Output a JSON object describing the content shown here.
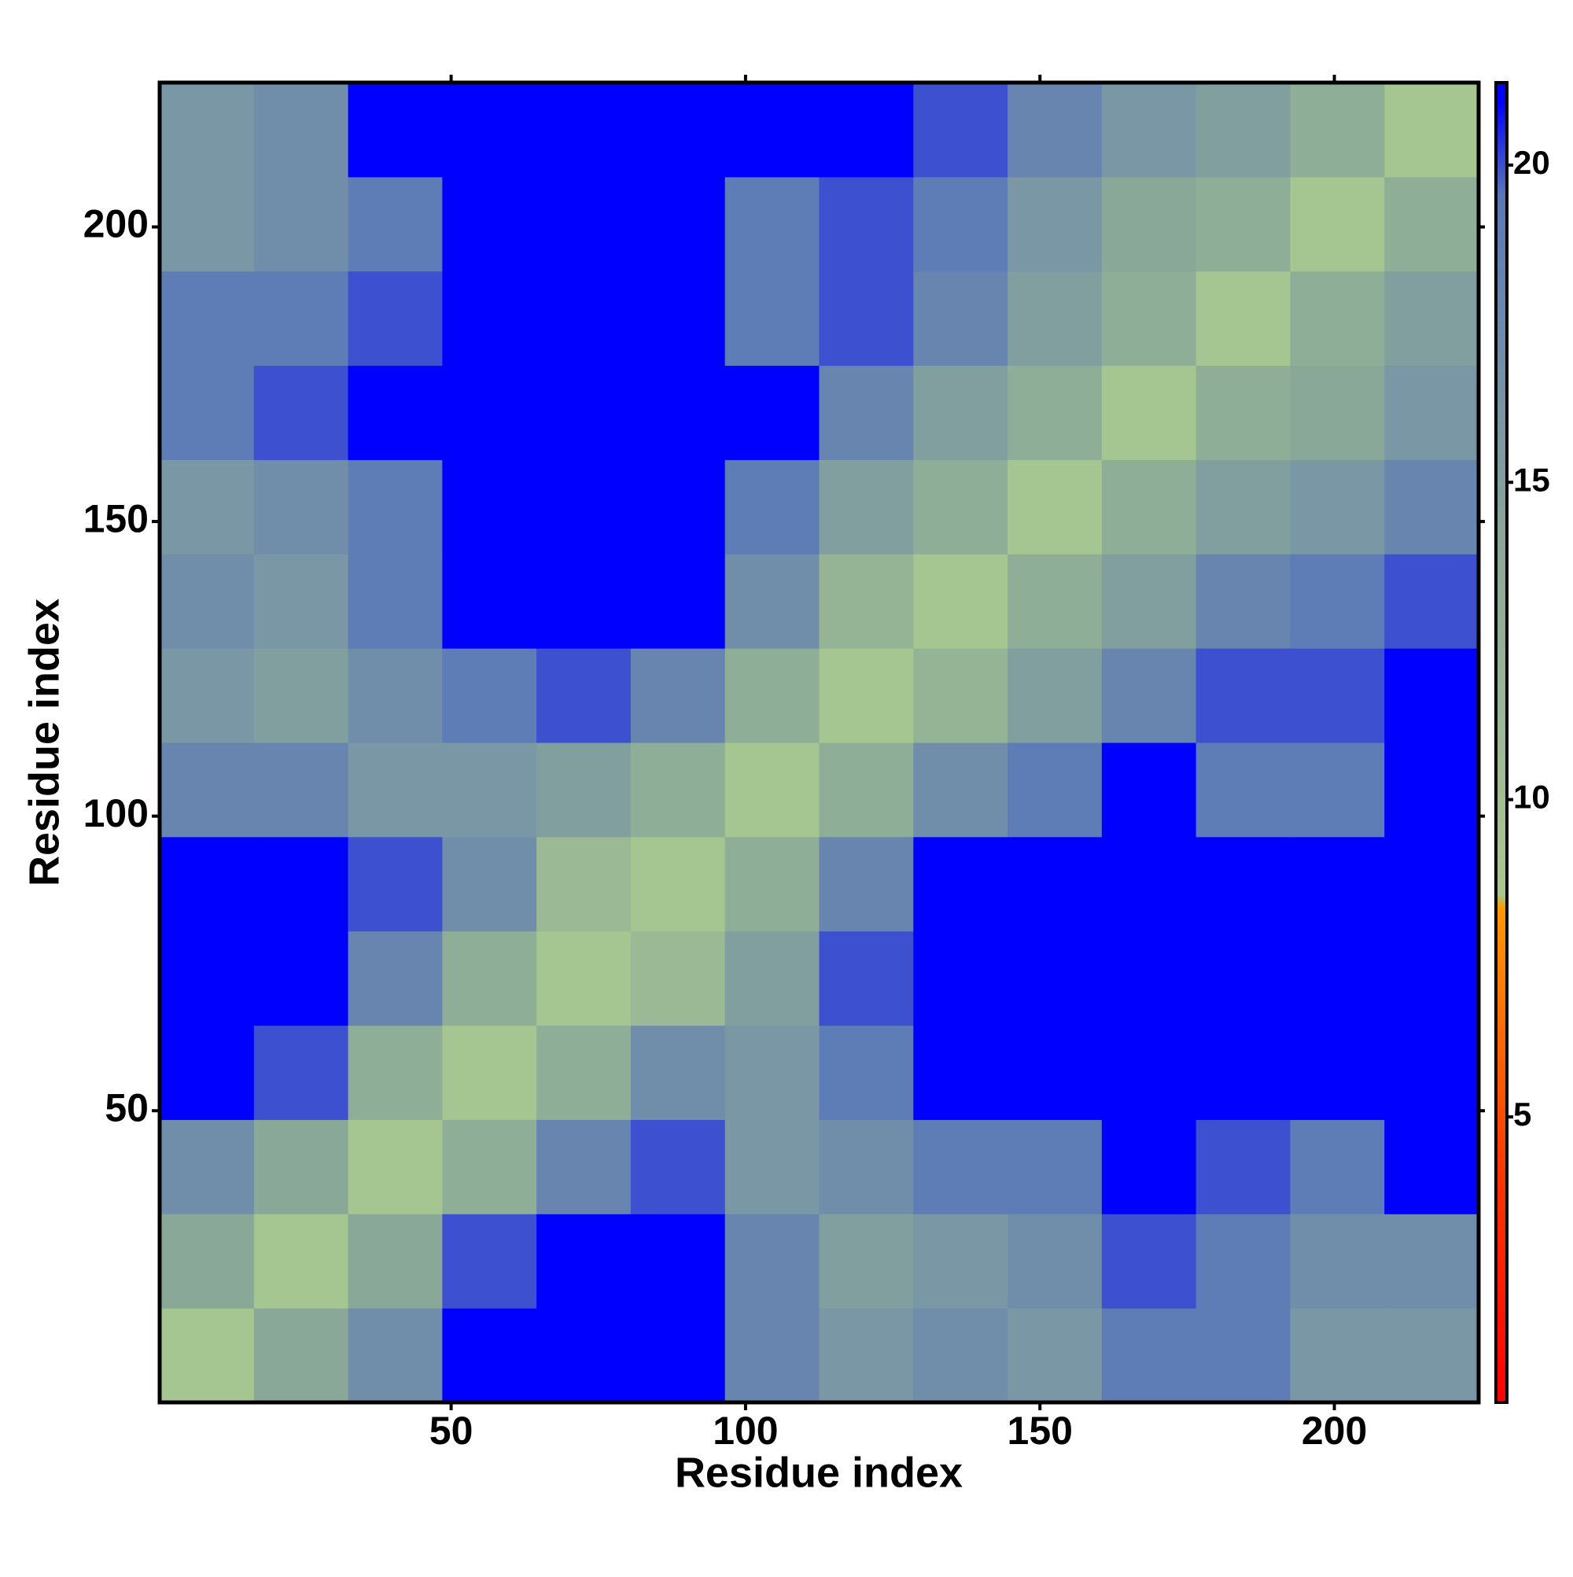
{
  "chart_data": {
    "type": "heatmap",
    "xlabel": "Residue index",
    "ylabel": "Residue index",
    "xbins": [
      0.5,
      16.5,
      32.5,
      48.5,
      64.5,
      80.5,
      96.5,
      112.5,
      128.5,
      144.5,
      160.5,
      176.5,
      192.5,
      208.5,
      224.5
    ],
    "ybins": [
      0.5,
      16.5,
      32.5,
      48.5,
      64.5,
      80.5,
      96.5,
      112.5,
      128.5,
      144.5,
      160.5,
      176.5,
      192.5,
      208.5,
      224.5
    ],
    "z": [
      [
        9,
        14,
        17,
        21,
        21,
        21,
        18,
        16,
        17,
        16,
        19,
        19,
        16,
        16
      ],
      [
        14,
        9,
        14,
        20,
        21,
        21,
        18,
        15,
        16,
        17,
        20,
        19,
        17,
        17
      ],
      [
        17,
        14,
        9,
        13,
        18,
        20,
        16,
        17,
        19,
        19,
        21,
        20,
        19,
        21
      ],
      [
        21,
        20,
        13,
        9,
        13,
        17,
        16,
        19,
        21,
        21,
        21,
        21,
        21,
        21
      ],
      [
        21,
        21,
        18,
        13,
        9,
        11,
        15,
        20,
        21,
        21,
        21,
        21,
        21,
        21
      ],
      [
        21,
        21,
        20,
        17,
        11,
        9,
        13,
        18,
        21,
        21,
        21,
        21,
        21,
        21
      ],
      [
        18,
        18,
        16,
        16,
        15,
        13,
        9,
        13,
        17,
        19,
        21,
        19,
        19,
        21
      ],
      [
        16,
        15,
        17,
        19,
        20,
        18,
        13,
        9,
        12,
        15,
        18,
        20,
        20,
        21
      ],
      [
        17,
        16,
        19,
        21,
        21,
        21,
        17,
        12,
        9,
        13,
        15,
        18,
        19,
        20
      ],
      [
        16,
        17,
        19,
        21,
        21,
        21,
        19,
        15,
        13,
        9,
        13,
        15,
        16,
        18
      ],
      [
        19,
        20,
        21,
        21,
        21,
        21,
        21,
        18,
        15,
        13,
        9,
        13,
        14,
        16
      ],
      [
        19,
        19,
        20,
        21,
        21,
        21,
        19,
        20,
        18,
        15,
        13,
        9,
        13,
        15
      ],
      [
        16,
        17,
        19,
        21,
        21,
        21,
        19,
        20,
        19,
        16,
        14,
        13,
        9,
        13
      ],
      [
        16,
        17,
        21,
        21,
        21,
        21,
        21,
        21,
        20,
        18,
        16,
        15,
        13,
        9
      ]
    ],
    "xlim": [
      0.5,
      224.5
    ],
    "ylim": [
      0.5,
      224.5
    ],
    "xticks": [
      50,
      100,
      150,
      200
    ],
    "yticks": [
      50,
      100,
      150,
      200
    ],
    "clim": [
      0.5,
      21.3
    ],
    "cticks": [
      5,
      10,
      15,
      20
    ],
    "colorscale": [
      [
        0.5,
        "#ff0000"
      ],
      [
        4,
        "#ff3300"
      ],
      [
        8.3,
        "#ff9900"
      ],
      [
        8.5,
        "#a8c890"
      ],
      [
        14,
        "#8aa898"
      ],
      [
        19.5,
        "#5a78b8"
      ],
      [
        21,
        "#0000ff"
      ],
      [
        21.3,
        "#0000ff"
      ]
    ]
  }
}
